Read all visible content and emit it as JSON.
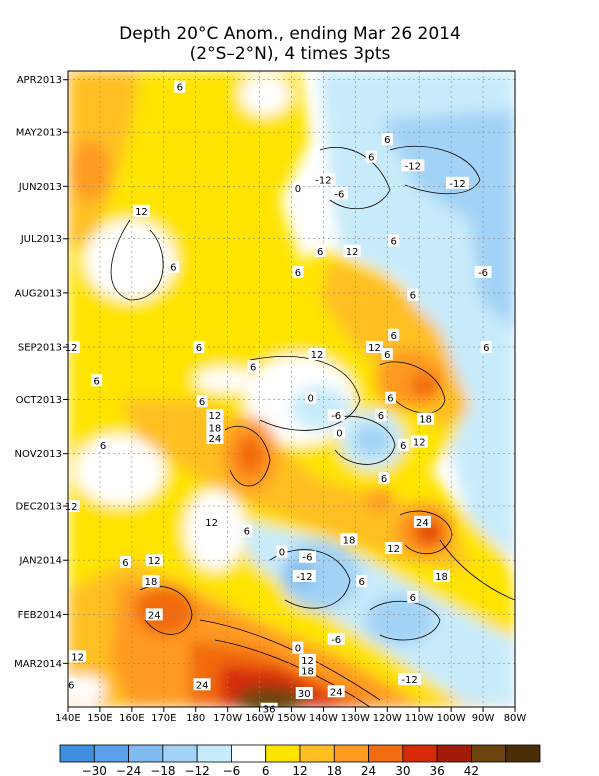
{
  "chart_data": {
    "type": "heatmap",
    "title": "Depth 20°C Anom., ending Mar 26 2014",
    "subtitle": "(2°S–2°N), 4 times 3pts",
    "xlabel": "",
    "ylabel": "",
    "x_ticks": [
      "140E",
      "150E",
      "160E",
      "170E",
      "180",
      "170W",
      "160W",
      "150W",
      "140W",
      "130W",
      "120W",
      "110W",
      "100W",
      "90W",
      "80W"
    ],
    "y_ticks": [
      "APR2013",
      "MAY2013",
      "JUN2013",
      "JUL2013",
      "AUG2013",
      "SEP2013",
      "OCT2013",
      "NOV2013",
      "DEC2013",
      "JAN2014",
      "FEB2014",
      "MAR2014"
    ],
    "colorbar": {
      "labels": [
        "−30",
        "−24",
        "−18",
        "−12",
        "−6",
        "6",
        "12",
        "18",
        "24",
        "30",
        "36",
        "42"
      ],
      "colors": [
        "#3f8fe0",
        "#5aa0ea",
        "#7fbaf0",
        "#a2d2f5",
        "#c8ebfb",
        "#ffffff",
        "#ffe400",
        "#ffbf22",
        "#ff9a20",
        "#f26b10",
        "#d62a0a",
        "#a21a0a",
        "#6b4410",
        "#4a2e08"
      ]
    },
    "contour_labels": [
      {
        "text": "6",
        "lon": 175,
        "date": "2013-04-05"
      },
      {
        "text": "-12",
        "lon": -140,
        "date": "2013-05-28"
      },
      {
        "text": "-6",
        "lon": -135,
        "date": "2013-06-05"
      },
      {
        "text": "0",
        "lon": -148,
        "date": "2013-06-02"
      },
      {
        "text": "6",
        "lon": -125,
        "date": "2013-05-15"
      },
      {
        "text": "-12",
        "lon": -112,
        "date": "2013-05-20"
      },
      {
        "text": "-12",
        "lon": -98,
        "date": "2013-05-30"
      },
      {
        "text": "6",
        "lon": -120,
        "date": "2013-05-05"
      },
      {
        "text": "12",
        "lon": 163,
        "date": "2013-06-15"
      },
      {
        "text": "6",
        "lon": -118,
        "date": "2013-07-02"
      },
      {
        "text": "12",
        "lon": -131,
        "date": "2013-07-08"
      },
      {
        "text": "6",
        "lon": -141,
        "date": "2013-07-08"
      },
      {
        "text": "6",
        "lon": 173,
        "date": "2013-07-17"
      },
      {
        "text": "6",
        "lon": -148,
        "date": "2013-07-20"
      },
      {
        "text": "-6",
        "lon": -90,
        "date": "2013-07-20"
      },
      {
        "text": "6",
        "lon": -112,
        "date": "2013-08-02"
      },
      {
        "text": "6",
        "lon": -118,
        "date": "2013-08-25"
      },
      {
        "text": "12",
        "lon": -124,
        "date": "2013-09-01"
      },
      {
        "text": "6",
        "lon": -89,
        "date": "2013-09-01"
      },
      {
        "text": "6",
        "lon": 181,
        "date": "2013-09-01"
      },
      {
        "text": "12",
        "lon": 141,
        "date": "2013-09-01"
      },
      {
        "text": "12",
        "lon": -142,
        "date": "2013-09-05"
      },
      {
        "text": "6",
        "lon": -120,
        "date": "2013-09-05"
      },
      {
        "text": "6",
        "lon": -162,
        "date": "2013-09-12"
      },
      {
        "text": "6",
        "lon": 149,
        "date": "2013-09-20"
      },
      {
        "text": "0",
        "lon": -144,
        "date": "2013-09-30"
      },
      {
        "text": "6",
        "lon": -119,
        "date": "2013-09-30"
      },
      {
        "text": "6",
        "lon": 182,
        "date": "2013-10-02"
      },
      {
        "text": "12",
        "lon": -174,
        "date": "2013-10-10"
      },
      {
        "text": "-6",
        "lon": -136,
        "date": "2013-10-10"
      },
      {
        "text": "6",
        "lon": -122,
        "date": "2013-10-10"
      },
      {
        "text": "18",
        "lon": -108,
        "date": "2013-10-12"
      },
      {
        "text": "18",
        "lon": -174,
        "date": "2013-10-17"
      },
      {
        "text": "24",
        "lon": -174,
        "date": "2013-10-23"
      },
      {
        "text": "0",
        "lon": -135,
        "date": "2013-10-20"
      },
      {
        "text": "6",
        "lon": -115,
        "date": "2013-10-27"
      },
      {
        "text": "12",
        "lon": -110,
        "date": "2013-10-25"
      },
      {
        "text": "6",
        "lon": 151,
        "date": "2013-10-27"
      },
      {
        "text": "6",
        "lon": -121,
        "date": "2013-11-15"
      },
      {
        "text": "12",
        "lon": 141,
        "date": "2013-12-01"
      },
      {
        "text": "12",
        "lon": -175,
        "date": "2013-12-10"
      },
      {
        "text": "6",
        "lon": -164,
        "date": "2013-12-15"
      },
      {
        "text": "24",
        "lon": -109,
        "date": "2013-12-10"
      },
      {
        "text": "18",
        "lon": -132,
        "date": "2013-12-20"
      },
      {
        "text": "12",
        "lon": -118,
        "date": "2013-12-25"
      },
      {
        "text": "0",
        "lon": -153,
        "date": "2013-12-27"
      },
      {
        "text": "-6",
        "lon": -145,
        "date": "2013-12-30"
      },
      {
        "text": "6",
        "lon": 158,
        "date": "2014-01-02"
      },
      {
        "text": "12",
        "lon": 167,
        "date": "2014-01-01"
      },
      {
        "text": "-12",
        "lon": -146,
        "date": "2014-01-10"
      },
      {
        "text": "18",
        "lon": -103,
        "date": "2014-01-10"
      },
      {
        "text": "18",
        "lon": 166,
        "date": "2014-01-13"
      },
      {
        "text": "6",
        "lon": -128,
        "date": "2014-01-13"
      },
      {
        "text": "6",
        "lon": -112,
        "date": "2014-01-22"
      },
      {
        "text": "24",
        "lon": 167,
        "date": "2014-02-01"
      },
      {
        "text": "12",
        "lon": 143,
        "date": "2014-02-25"
      },
      {
        "text": "-6",
        "lon": -136,
        "date": "2014-02-15"
      },
      {
        "text": "0",
        "lon": -148,
        "date": "2014-02-20"
      },
      {
        "text": "12",
        "lon": -145,
        "date": "2014-02-27"
      },
      {
        "text": "18",
        "lon": -145,
        "date": "2014-03-05"
      },
      {
        "text": "-12",
        "lon": -113,
        "date": "2014-03-10"
      },
      {
        "text": "6",
        "lon": 141,
        "date": "2014-03-13"
      },
      {
        "text": "24",
        "lon": -178,
        "date": "2014-03-13"
      },
      {
        "text": "30",
        "lon": -146,
        "date": "2014-03-18"
      },
      {
        "text": "24",
        "lon": -136,
        "date": "2014-03-17"
      },
      {
        "text": "36",
        "lon": -157,
        "date": "2014-03-27"
      }
    ]
  }
}
